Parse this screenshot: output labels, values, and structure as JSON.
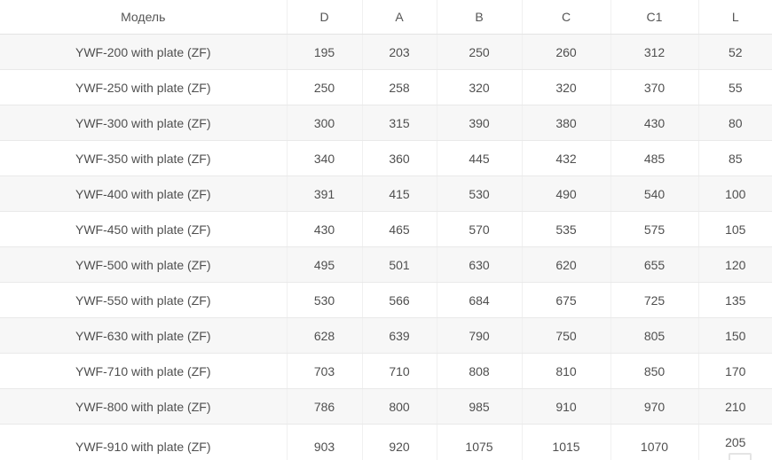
{
  "table": {
    "columns": [
      "Модель",
      "D",
      "A",
      "B",
      "C",
      "C1",
      "L"
    ],
    "rows": [
      [
        "YWF-200 with plate (ZF)",
        "195",
        "203",
        "250",
        "260",
        "312",
        "52"
      ],
      [
        "YWF-250 with plate (ZF)",
        "250",
        "258",
        "320",
        "320",
        "370",
        "55"
      ],
      [
        "YWF-300 with plate (ZF)",
        "300",
        "315",
        "390",
        "380",
        "430",
        "80"
      ],
      [
        "YWF-350 with plate (ZF)",
        "340",
        "360",
        "445",
        "432",
        "485",
        "85"
      ],
      [
        "YWF-400 with plate (ZF)",
        "391",
        "415",
        "530",
        "490",
        "540",
        "100"
      ],
      [
        "YWF-450 with plate (ZF)",
        "430",
        "465",
        "570",
        "535",
        "575",
        "105"
      ],
      [
        "YWF-500 with plate (ZF)",
        "495",
        "501",
        "630",
        "620",
        "655",
        "120"
      ],
      [
        "YWF-550 with plate (ZF)",
        "530",
        "566",
        "684",
        "675",
        "725",
        "135"
      ],
      [
        "YWF-630 with plate (ZF)",
        "628",
        "639",
        "790",
        "750",
        "805",
        "150"
      ],
      [
        "YWF-710 with plate (ZF)",
        "703",
        "710",
        "808",
        "810",
        "850",
        "170"
      ],
      [
        "YWF-800 with plate (ZF)",
        "786",
        "800",
        "985",
        "910",
        "970",
        "210"
      ],
      [
        "YWF-910 with plate (ZF)",
        "903",
        "920",
        "1075",
        "1015",
        "1070",
        "205"
      ]
    ]
  },
  "colors": {
    "stripe": "#f7f7f7",
    "row_border": "#e9e9e9",
    "column_border": "#f0f0f0",
    "text": "#4f4f4f"
  },
  "icons": {
    "bottom_cutoff": "partial-image-icon"
  }
}
